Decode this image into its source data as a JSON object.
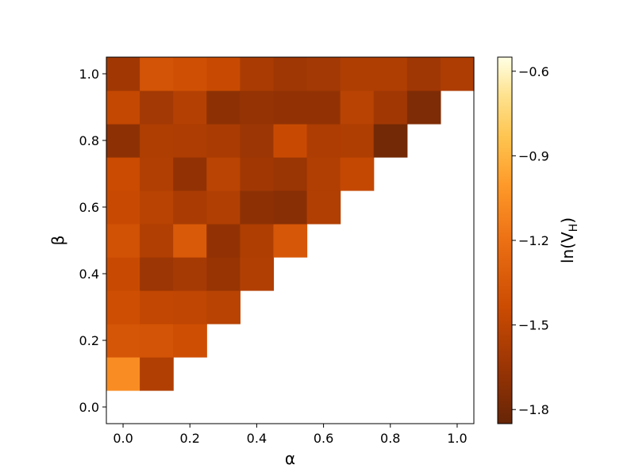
{
  "chart_data": {
    "type": "heatmap",
    "title": "",
    "xlabel": "α",
    "ylabel": "β",
    "x": [
      0.0,
      0.1,
      0.2,
      0.3,
      0.4,
      0.5,
      0.6,
      0.7,
      0.8,
      0.9,
      1.0
    ],
    "y": [
      0.0,
      0.1,
      0.2,
      0.3,
      0.4,
      0.5,
      0.6,
      0.7,
      0.8,
      0.9,
      1.0
    ],
    "xlim": [
      -0.05,
      1.05
    ],
    "ylim": [
      -0.05,
      1.05
    ],
    "xticks": [
      "0.0",
      "0.2",
      "0.4",
      "0.6",
      "0.8",
      "1.0"
    ],
    "yticks": [
      "0.0",
      "0.2",
      "0.4",
      "0.6",
      "0.8",
      "1.0"
    ],
    "grid": false,
    "colormap": "YlOrBr_r",
    "colorbar": {
      "label": "ln(V_H)",
      "range": [
        -1.85,
        -0.55
      ],
      "ticks": [
        "−0.6",
        "−0.9",
        "−1.2",
        "−1.5",
        "−1.8"
      ]
    },
    "values": [
      [
        null,
        null,
        null,
        null,
        null,
        null,
        null,
        null,
        null,
        null,
        null
      ],
      [
        -1.06,
        -1.55,
        null,
        null,
        null,
        null,
        null,
        null,
        null,
        null,
        null
      ],
      [
        -1.37,
        -1.38,
        -1.42,
        null,
        null,
        null,
        null,
        null,
        null,
        null,
        null
      ],
      [
        -1.42,
        -1.48,
        -1.49,
        -1.52,
        null,
        null,
        null,
        null,
        null,
        null,
        null
      ],
      [
        -1.45,
        -1.64,
        -1.6,
        -1.66,
        -1.55,
        null,
        null,
        null,
        null,
        null,
        null
      ],
      [
        -1.4,
        -1.55,
        -1.34,
        -1.68,
        -1.56,
        -1.36,
        null,
        null,
        null,
        null,
        null
      ],
      [
        -1.45,
        -1.52,
        -1.58,
        -1.55,
        -1.7,
        -1.72,
        -1.55,
        null,
        null,
        null,
        null
      ],
      [
        -1.44,
        -1.55,
        -1.68,
        -1.51,
        -1.62,
        -1.65,
        -1.55,
        -1.47,
        null,
        null,
        null
      ],
      [
        -1.7,
        -1.56,
        -1.57,
        -1.58,
        -1.64,
        -1.45,
        -1.57,
        -1.56,
        -1.8,
        null,
        null
      ],
      [
        -1.47,
        -1.61,
        -1.54,
        -1.7,
        -1.67,
        -1.68,
        -1.68,
        -1.52,
        -1.62,
        -1.76,
        null
      ],
      [
        -1.62,
        -1.38,
        -1.41,
        -1.45,
        -1.58,
        -1.63,
        -1.61,
        -1.56,
        -1.56,
        -1.63,
        -1.57
      ]
    ]
  }
}
